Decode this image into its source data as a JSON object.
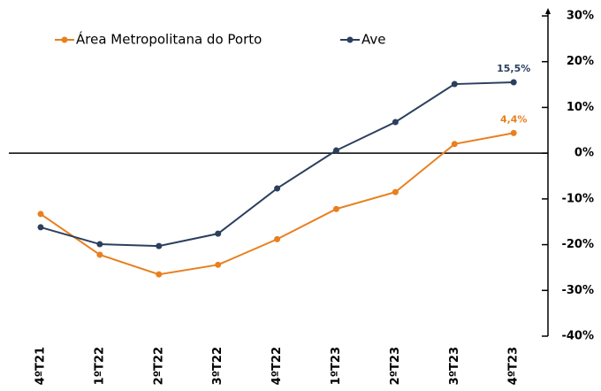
{
  "chart_data": {
    "type": "line",
    "categories": [
      "4ºT21",
      "1ºT22",
      "2ºT22",
      "3ºT22",
      "4ºT22",
      "1ºT23",
      "2ºT23",
      "3ºT23",
      "4ºT23"
    ],
    "series": [
      {
        "name": "Área Metropolitana do Porto",
        "color": "#e8801f",
        "values": [
          -13.3,
          -22.2,
          -26.5,
          -24.4,
          -18.8,
          -12.2,
          -8.5,
          2.0,
          4.4
        ],
        "value_labels": [
          null,
          null,
          null,
          null,
          null,
          null,
          null,
          null,
          "4,4%"
        ]
      },
      {
        "name": "Ave",
        "color": "#2b3f5e",
        "values": [
          -16.2,
          -19.9,
          -20.3,
          -17.6,
          -7.7,
          0.6,
          6.8,
          15.1,
          15.5
        ],
        "value_labels": [
          null,
          null,
          null,
          null,
          null,
          null,
          null,
          null,
          "15,5%"
        ]
      }
    ],
    "ylim": [
      -40,
      30
    ],
    "yticks": [
      {
        "value": -40,
        "label": "-40%"
      },
      {
        "value": -30,
        "label": "-30%"
      },
      {
        "value": -20,
        "label": "-20%"
      },
      {
        "value": -10,
        "label": "-10%"
      },
      {
        "value": 0,
        "label": "0%"
      },
      {
        "value": 10,
        "label": "10%"
      },
      {
        "value": 20,
        "label": "20%"
      },
      {
        "value": 30,
        "label": "30%"
      }
    ],
    "legend": "top-left"
  }
}
